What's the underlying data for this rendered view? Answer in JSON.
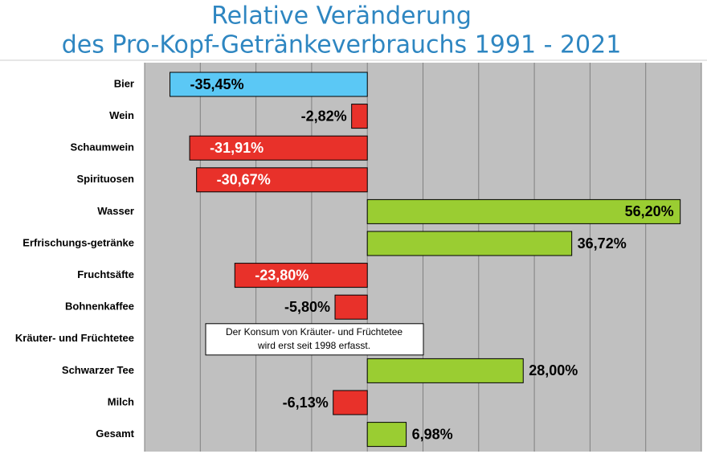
{
  "chart_data": {
    "type": "bar",
    "orientation": "horizontal",
    "title": [
      "Relative Veränderung",
      "des Pro-Kopf-Getränkeverbrauchs 1991 - 2021"
    ],
    "categories": [
      "Bier",
      "Wein",
      "Schaumwein",
      "Spirituosen",
      "Wasser",
      "Erfrischungs-getränke",
      "Fruchtsäfte",
      "Bohnenkaffee",
      "Kräuter- und Früchtetee",
      "Schwarzer Tee",
      "Milch",
      "Gesamt"
    ],
    "values": [
      -35.45,
      -2.82,
      -31.91,
      -30.67,
      56.2,
      36.72,
      -23.8,
      -5.8,
      null,
      28.0,
      -6.13,
      6.98
    ],
    "value_labels": [
      "-35,45%",
      "-2,82%",
      "-31,91%",
      "-30,67%",
      "56,20%",
      "36,72%",
      "-23,80%",
      "-5,80%",
      null,
      "28,00%",
      "-6,13%",
      "6,98%"
    ],
    "colors": [
      "#5bc8f5",
      "#e8312a",
      "#e8312a",
      "#e8312a",
      "#9acd32",
      "#9acd32",
      "#e8312a",
      "#e8312a",
      null,
      "#9acd32",
      "#e8312a",
      "#9acd32"
    ],
    "xlim": [
      -40,
      60
    ],
    "xticks": [
      -40,
      -30,
      -20,
      -10,
      0,
      10,
      20,
      30,
      40,
      50,
      60
    ],
    "grid": true,
    "annotation": [
      "Der Konsum von  Kräuter- und Früchtetee",
      "wird erst seit 1998  erfasst."
    ]
  }
}
